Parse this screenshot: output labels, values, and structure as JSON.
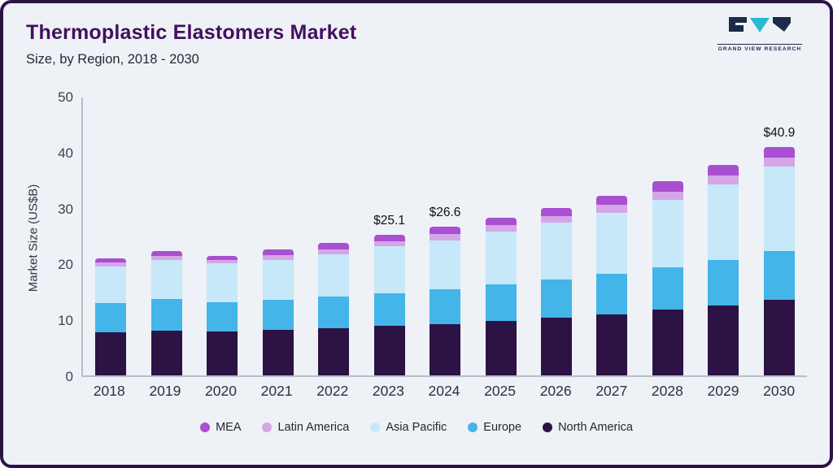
{
  "header": {
    "title": "Thermoplastic Elastomers Market",
    "subtitle": "Size, by Region, 2018 - 2030",
    "logo_text": "GRAND VIEW RESEARCH"
  },
  "chart_data": {
    "type": "bar",
    "stacked": true,
    "title": "Thermoplastic Elastomers Market",
    "subtitle": "Size, by Region, 2018 - 2030",
    "xlabel": "",
    "ylabel": "Market Size (US$B)",
    "ylim": [
      0,
      50
    ],
    "yticks": [
      0,
      10,
      20,
      30,
      40,
      50
    ],
    "grid": false,
    "legend_position": "bottom",
    "categories": [
      "2018",
      "2019",
      "2020",
      "2021",
      "2022",
      "2023",
      "2024",
      "2025",
      "2026",
      "2027",
      "2028",
      "2029",
      "2030"
    ],
    "series": [
      {
        "name": "North America",
        "color": "#2c1245",
        "values": [
          7.7,
          8.0,
          7.8,
          8.1,
          8.5,
          8.8,
          9.2,
          9.8,
          10.3,
          10.9,
          11.8,
          12.5,
          13.5
        ]
      },
      {
        "name": "Europe",
        "color": "#43b5e8",
        "values": [
          5.3,
          5.6,
          5.3,
          5.4,
          5.6,
          5.9,
          6.2,
          6.5,
          6.8,
          7.2,
          7.6,
          8.2,
          8.8
        ]
      },
      {
        "name": "Asia Pacific",
        "color": "#c7e8f8",
        "values": [
          6.5,
          7.0,
          6.9,
          7.2,
          7.6,
          8.4,
          8.8,
          9.5,
          10.2,
          11.0,
          12.0,
          13.4,
          15.0
        ]
      },
      {
        "name": "Latin America",
        "color": "#d4a6e8",
        "values": [
          0.7,
          0.7,
          0.6,
          0.8,
          0.9,
          0.9,
          1.1,
          1.1,
          1.2,
          1.4,
          1.5,
          1.6,
          1.7
        ]
      },
      {
        "name": "MEA",
        "color": "#a94fd1",
        "values": [
          0.8,
          0.9,
          0.8,
          1.0,
          1.1,
          1.1,
          1.3,
          1.3,
          1.5,
          1.7,
          1.8,
          1.9,
          1.9
        ]
      }
    ],
    "totals": [
      21.0,
      22.2,
      21.4,
      22.5,
      23.7,
      25.1,
      26.6,
      28.2,
      30.0,
      32.2,
      34.7,
      37.6,
      40.9
    ],
    "annotations": [
      {
        "category": "2023",
        "label": "$25.1"
      },
      {
        "category": "2024",
        "label": "$26.6"
      },
      {
        "category": "2030",
        "label": "$40.9"
      }
    ],
    "legend_order": [
      "MEA",
      "Latin America",
      "Asia Pacific",
      "Europe",
      "North America"
    ]
  },
  "theme": {
    "background": "#eef1f6",
    "frame_border": "#2d1345",
    "title_color": "#42105e",
    "subtitle_color": "#242a34",
    "axis_color": "#b6bdc9",
    "tick_text_color": "#3c424d",
    "logo_navy": "#1d2a4a",
    "logo_teal": "#28bcd2"
  }
}
